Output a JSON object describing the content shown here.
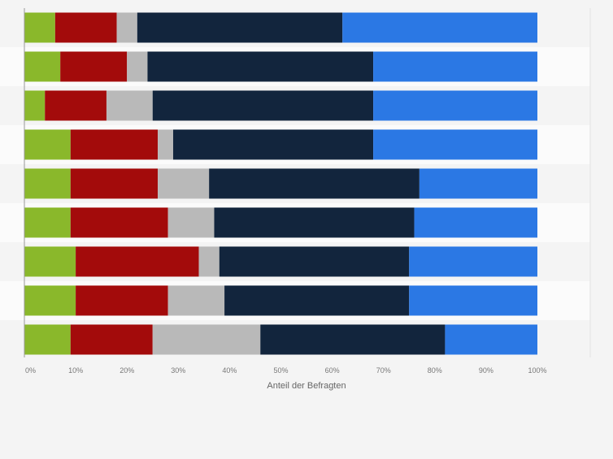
{
  "chart_data": {
    "type": "bar",
    "orientation": "horizontal",
    "stacked": true,
    "xlabel": "Anteil der Befragten",
    "xlim": [
      0,
      100
    ],
    "x_ticks": [
      "0%",
      "10%",
      "20%",
      "30%",
      "40%",
      "50%",
      "60%",
      "70%",
      "80%",
      "90%",
      "100%"
    ],
    "grid": true,
    "categories": [
      "",
      "",
      "",
      "",
      "",
      "",
      "",
      "",
      ""
    ],
    "series": [
      {
        "color": "#8ab82b",
        "values": [
          6,
          7,
          4,
          9,
          9,
          9,
          10,
          10,
          9
        ]
      },
      {
        "color": "#a30b0b",
        "values": [
          12,
          13,
          12,
          17,
          17,
          19,
          24,
          18,
          16
        ]
      },
      {
        "color": "#b9b9b9",
        "values": [
          4,
          4,
          9,
          3,
          10,
          9,
          4,
          11,
          21
        ]
      },
      {
        "color": "#12253d",
        "values": [
          40,
          44,
          43,
          39,
          41,
          39,
          37,
          36,
          36
        ]
      },
      {
        "color": "#2b78e4",
        "values": [
          38,
          32,
          32,
          32,
          23,
          24,
          25,
          25,
          18
        ]
      }
    ]
  }
}
